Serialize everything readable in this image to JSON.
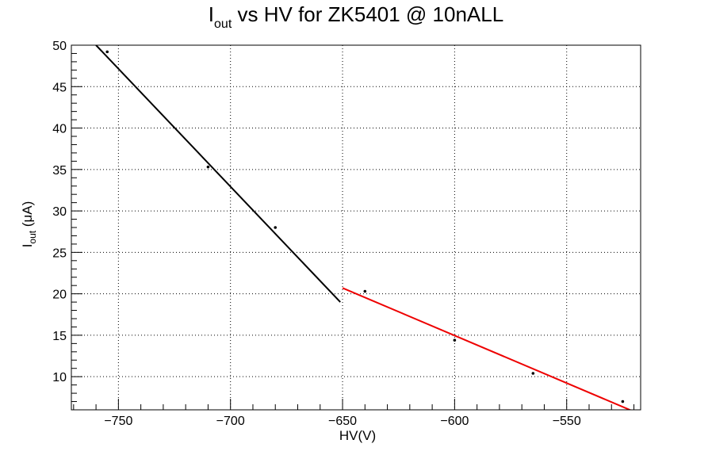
{
  "chart_data": {
    "type": "scatter",
    "title": {
      "main": "I",
      "sub": "out",
      "rest": " vs HV for ZK5401 @ 10nALL"
    },
    "xlabel": "HV(V)",
    "ylabel": {
      "main": "I",
      "sub": "out",
      "rest": " (μA)"
    },
    "xlim": [
      -771,
      -517
    ],
    "ylim": [
      6,
      50
    ],
    "x_ticks": [
      -750,
      -700,
      -650,
      -600,
      -550
    ],
    "x_tick_labels": [
      "−750",
      "−700",
      "−650",
      "−600",
      "−550"
    ],
    "y_ticks": [
      10,
      15,
      20,
      25,
      30,
      35,
      40,
      45,
      50
    ],
    "y_tick_labels": [
      "10",
      "15",
      "20",
      "25",
      "30",
      "35",
      "40",
      "45",
      "50"
    ],
    "grid": true,
    "legend": "none",
    "series": [
      {
        "color": "#000000",
        "points": [
          {
            "x": -755,
            "y": 49.2
          },
          {
            "x": -710,
            "y": 35.3
          },
          {
            "x": -680,
            "y": 28.0
          },
          {
            "x": -640,
            "y": 20.3
          },
          {
            "x": -600,
            "y": 14.4
          },
          {
            "x": -565,
            "y": 10.4
          },
          {
            "x": -525,
            "y": 7.0
          }
        ]
      }
    ],
    "fits": [
      {
        "color": "#000000",
        "x": [
          -760,
          -651
        ],
        "y": [
          50.0,
          19.0
        ]
      },
      {
        "color": "#ee0000",
        "x": [
          -650,
          -521
        ],
        "y": [
          20.7,
          5.9
        ]
      }
    ]
  }
}
